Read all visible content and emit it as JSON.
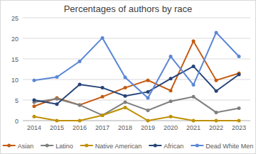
{
  "chart_data": {
    "type": "line",
    "title": "Percentages of authors by race",
    "categories": [
      "2014",
      "2015",
      "2016",
      "2017",
      "2018",
      "2019",
      "2020",
      "2021",
      "2022",
      "2023"
    ],
    "series": [
      {
        "name": "Asian",
        "color": "#c55a11",
        "values": [
          3.5,
          5.5,
          3.8,
          5.8,
          8,
          9.8,
          7.3,
          19.3,
          9.8,
          11.5
        ]
      },
      {
        "name": "Latino",
        "color": "#7f7f7f",
        "values": [
          4.5,
          5.3,
          3.8,
          1.3,
          4.5,
          2.5,
          4.7,
          5.8,
          2.0,
          3.0
        ]
      },
      {
        "name": "Native American",
        "color": "#bf9000",
        "values": [
          1.0,
          0,
          0,
          1.3,
          3.2,
          0,
          1.0,
          0,
          0,
          0
        ]
      },
      {
        "name": "African",
        "color": "#264478",
        "values": [
          5.0,
          4.0,
          8.8,
          8.0,
          6.0,
          7.0,
          10.2,
          13.2,
          7.2,
          11.2
        ]
      },
      {
        "name": "Dead White Men",
        "color": "#5b87d6",
        "values": [
          9.8,
          10.6,
          14.4,
          20.1,
          10.5,
          5.5,
          15.6,
          8.7,
          21.4,
          15.6
        ]
      }
    ],
    "ylim": [
      0,
      25
    ],
    "yticks": [
      0,
      5,
      10,
      15,
      20,
      25
    ],
    "grid": true,
    "legend": "bottom",
    "marker": "circle",
    "line_style": "solid"
  }
}
